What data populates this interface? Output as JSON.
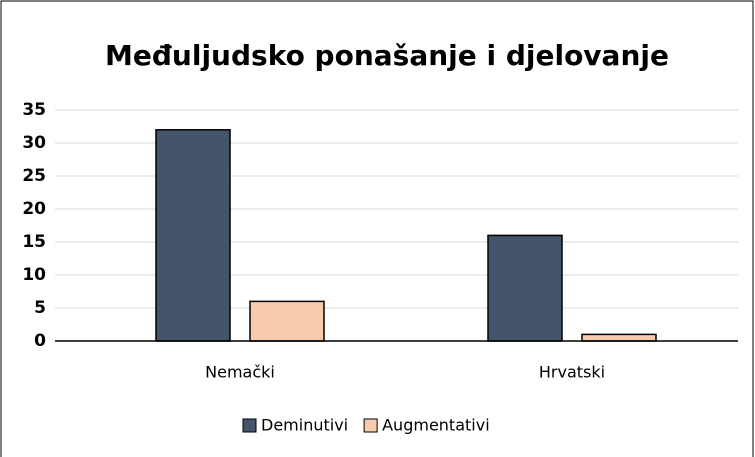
{
  "chart_data": {
    "type": "bar",
    "title": "Međuljudsko ponašanje i djelovanje",
    "categories": [
      "Nemački",
      "Hrvatski"
    ],
    "series": [
      {
        "name": "Deminutivi",
        "color": "#44546a",
        "values": [
          32,
          16
        ]
      },
      {
        "name": "Augmentativi",
        "color": "#f8cbad",
        "values": [
          6,
          1
        ]
      }
    ],
    "ylim": [
      0,
      35
    ],
    "yticks": [
      0,
      5,
      10,
      15,
      20,
      25,
      30,
      35
    ],
    "grid": true,
    "legend": "bottom"
  }
}
